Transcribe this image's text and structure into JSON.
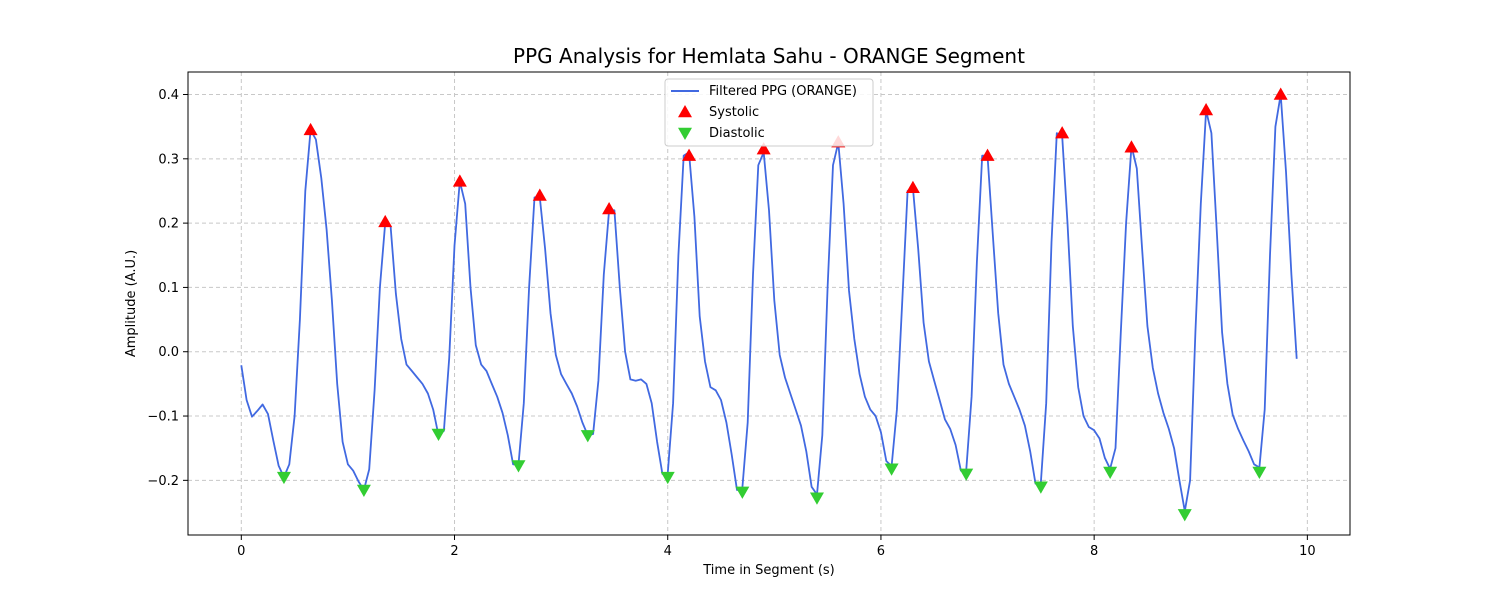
{
  "chart_data": {
    "type": "line",
    "title": "PPG Analysis for Hemlata Sahu - ORANGE Segment",
    "xlabel": "Time in Segment (s)",
    "ylabel": "Amplitude (A.U.)",
    "xlim": [
      -0.5,
      10.4
    ],
    "ylim": [
      -0.285,
      0.435
    ],
    "xticks": [
      0,
      2,
      4,
      6,
      8,
      10
    ],
    "xtick_labels": [
      "0",
      "2",
      "4",
      "6",
      "8",
      "10"
    ],
    "yticks": [
      -0.2,
      -0.1,
      0.0,
      0.1,
      0.2,
      0.3,
      0.4
    ],
    "ytick_labels": [
      "−0.2",
      "−0.1",
      "0.0",
      "0.1",
      "0.2",
      "0.3",
      "0.4"
    ],
    "grid": true,
    "legend_position": "top-center",
    "series": [
      {
        "name": "Filtered PPG (ORANGE)",
        "kind": "line",
        "color": "#4169e1",
        "x": [
          0.0,
          0.05,
          0.1,
          0.15,
          0.2,
          0.25,
          0.3,
          0.35,
          0.4,
          0.45,
          0.5,
          0.55,
          0.6,
          0.65,
          0.7,
          0.75,
          0.8,
          0.85,
          0.9,
          0.95,
          1.0,
          1.05,
          1.1,
          1.15,
          1.2,
          1.25,
          1.3,
          1.35,
          1.4,
          1.45,
          1.5,
          1.55,
          1.6,
          1.65,
          1.7,
          1.75,
          1.8,
          1.85,
          1.9,
          1.95,
          2.0,
          2.05,
          2.1,
          2.15,
          2.2,
          2.25,
          2.3,
          2.35,
          2.4,
          2.45,
          2.5,
          2.55,
          2.6,
          2.65,
          2.7,
          2.75,
          2.8,
          2.85,
          2.9,
          2.95,
          3.0,
          3.05,
          3.1,
          3.15,
          3.2,
          3.25,
          3.3,
          3.35,
          3.4,
          3.45,
          3.5,
          3.55,
          3.6,
          3.65,
          3.7,
          3.75,
          3.8,
          3.85,
          3.9,
          3.95,
          4.0,
          4.05,
          4.1,
          4.15,
          4.2,
          4.25,
          4.3,
          4.35,
          4.4,
          4.45,
          4.5,
          4.55,
          4.6,
          4.65,
          4.7,
          4.75,
          4.8,
          4.85,
          4.9,
          4.95,
          5.0,
          5.05,
          5.1,
          5.15,
          5.2,
          5.25,
          5.3,
          5.35,
          5.4,
          5.45,
          5.5,
          5.55,
          5.6,
          5.65,
          5.7,
          5.75,
          5.8,
          5.85,
          5.9,
          5.95,
          6.0,
          6.05,
          6.1,
          6.15,
          6.2,
          6.25,
          6.3,
          6.35,
          6.4,
          6.45,
          6.5,
          6.55,
          6.6,
          6.65,
          6.7,
          6.75,
          6.8,
          6.85,
          6.9,
          6.95,
          7.0,
          7.05,
          7.1,
          7.15,
          7.2,
          7.25,
          7.3,
          7.35,
          7.4,
          7.45,
          7.5,
          7.55,
          7.6,
          7.65,
          7.7,
          7.75,
          7.8,
          7.85,
          7.9,
          7.95,
          8.0,
          8.05,
          8.1,
          8.15,
          8.2,
          8.25,
          8.3,
          8.35,
          8.4,
          8.45,
          8.5,
          8.55,
          8.6,
          8.65,
          8.7,
          8.75,
          8.8,
          8.85,
          8.9,
          8.95,
          9.0,
          9.05,
          9.1,
          9.15,
          9.2,
          9.25,
          9.3,
          9.35,
          9.4,
          9.45,
          9.5,
          9.55,
          9.6,
          9.65,
          9.7,
          9.75,
          9.8,
          9.85,
          9.9
        ],
        "y": [
          -0.021,
          -0.075,
          -0.101,
          -0.092,
          -0.082,
          -0.097,
          -0.138,
          -0.177,
          -0.195,
          -0.175,
          -0.1,
          0.05,
          0.25,
          0.345,
          0.33,
          0.27,
          0.19,
          0.08,
          -0.05,
          -0.14,
          -0.175,
          -0.185,
          -0.202,
          -0.215,
          -0.183,
          -0.06,
          0.1,
          0.2,
          0.195,
          0.09,
          0.02,
          -0.02,
          -0.03,
          -0.04,
          -0.05,
          -0.065,
          -0.09,
          -0.13,
          -0.123,
          -0.01,
          0.165,
          0.265,
          0.23,
          0.1,
          0.01,
          -0.02,
          -0.03,
          -0.05,
          -0.07,
          -0.095,
          -0.13,
          -0.175,
          -0.175,
          -0.08,
          0.1,
          0.24,
          0.24,
          0.16,
          0.06,
          -0.005,
          -0.035,
          -0.05,
          -0.065,
          -0.085,
          -0.11,
          -0.13,
          -0.128,
          -0.045,
          0.12,
          0.22,
          0.22,
          0.1,
          0.0,
          -0.043,
          -0.045,
          -0.043,
          -0.05,
          -0.08,
          -0.14,
          -0.19,
          -0.19,
          -0.08,
          0.15,
          0.305,
          0.31,
          0.21,
          0.055,
          -0.015,
          -0.055,
          -0.06,
          -0.075,
          -0.11,
          -0.16,
          -0.215,
          -0.213,
          -0.11,
          0.12,
          0.29,
          0.31,
          0.22,
          0.08,
          -0.005,
          -0.04,
          -0.065,
          -0.09,
          -0.115,
          -0.155,
          -0.21,
          -0.222,
          -0.13,
          0.1,
          0.29,
          0.325,
          0.23,
          0.095,
          0.02,
          -0.035,
          -0.07,
          -0.09,
          -0.1,
          -0.125,
          -0.17,
          -0.178,
          -0.09,
          0.08,
          0.25,
          0.255,
          0.16,
          0.045,
          -0.015,
          -0.045,
          -0.075,
          -0.105,
          -0.12,
          -0.145,
          -0.185,
          -0.185,
          -0.07,
          0.14,
          0.305,
          0.305,
          0.18,
          0.06,
          -0.02,
          -0.05,
          -0.07,
          -0.09,
          -0.115,
          -0.155,
          -0.205,
          -0.205,
          -0.08,
          0.17,
          0.34,
          0.335,
          0.2,
          0.04,
          -0.055,
          -0.1,
          -0.117,
          -0.122,
          -0.135,
          -0.165,
          -0.182,
          -0.15,
          0.03,
          0.2,
          0.32,
          0.285,
          0.16,
          0.04,
          -0.025,
          -0.065,
          -0.095,
          -0.12,
          -0.15,
          -0.2,
          -0.248,
          -0.2,
          0.03,
          0.23,
          0.375,
          0.34,
          0.19,
          0.03,
          -0.05,
          -0.098,
          -0.12,
          -0.138,
          -0.155,
          -0.175,
          -0.18,
          -0.09,
          0.15,
          0.35,
          0.4,
          0.28,
          0.12,
          -0.011
        ]
      },
      {
        "name": "Systolic",
        "kind": "marker-up",
        "color": "#ff0000",
        "x": [
          0.65,
          1.35,
          2.05,
          2.8,
          3.45,
          4.2,
          4.9,
          5.6,
          6.3,
          7.0,
          7.7,
          8.35,
          9.05,
          9.75
        ],
        "y": [
          0.345,
          0.202,
          0.265,
          0.243,
          0.222,
          0.305,
          0.315,
          0.326,
          0.255,
          0.305,
          0.34,
          0.318,
          0.376,
          0.4
        ]
      },
      {
        "name": "Diastolic",
        "kind": "marker-down",
        "color": "#32cd32",
        "x": [
          0.4,
          1.15,
          1.85,
          2.6,
          3.25,
          4.0,
          4.7,
          5.4,
          6.1,
          6.8,
          7.5,
          8.15,
          8.85,
          9.55
        ],
        "y": [
          -0.195,
          -0.215,
          -0.128,
          -0.177,
          -0.13,
          -0.195,
          -0.218,
          -0.227,
          -0.182,
          -0.19,
          -0.21,
          -0.187,
          -0.253,
          -0.187
        ]
      }
    ]
  }
}
